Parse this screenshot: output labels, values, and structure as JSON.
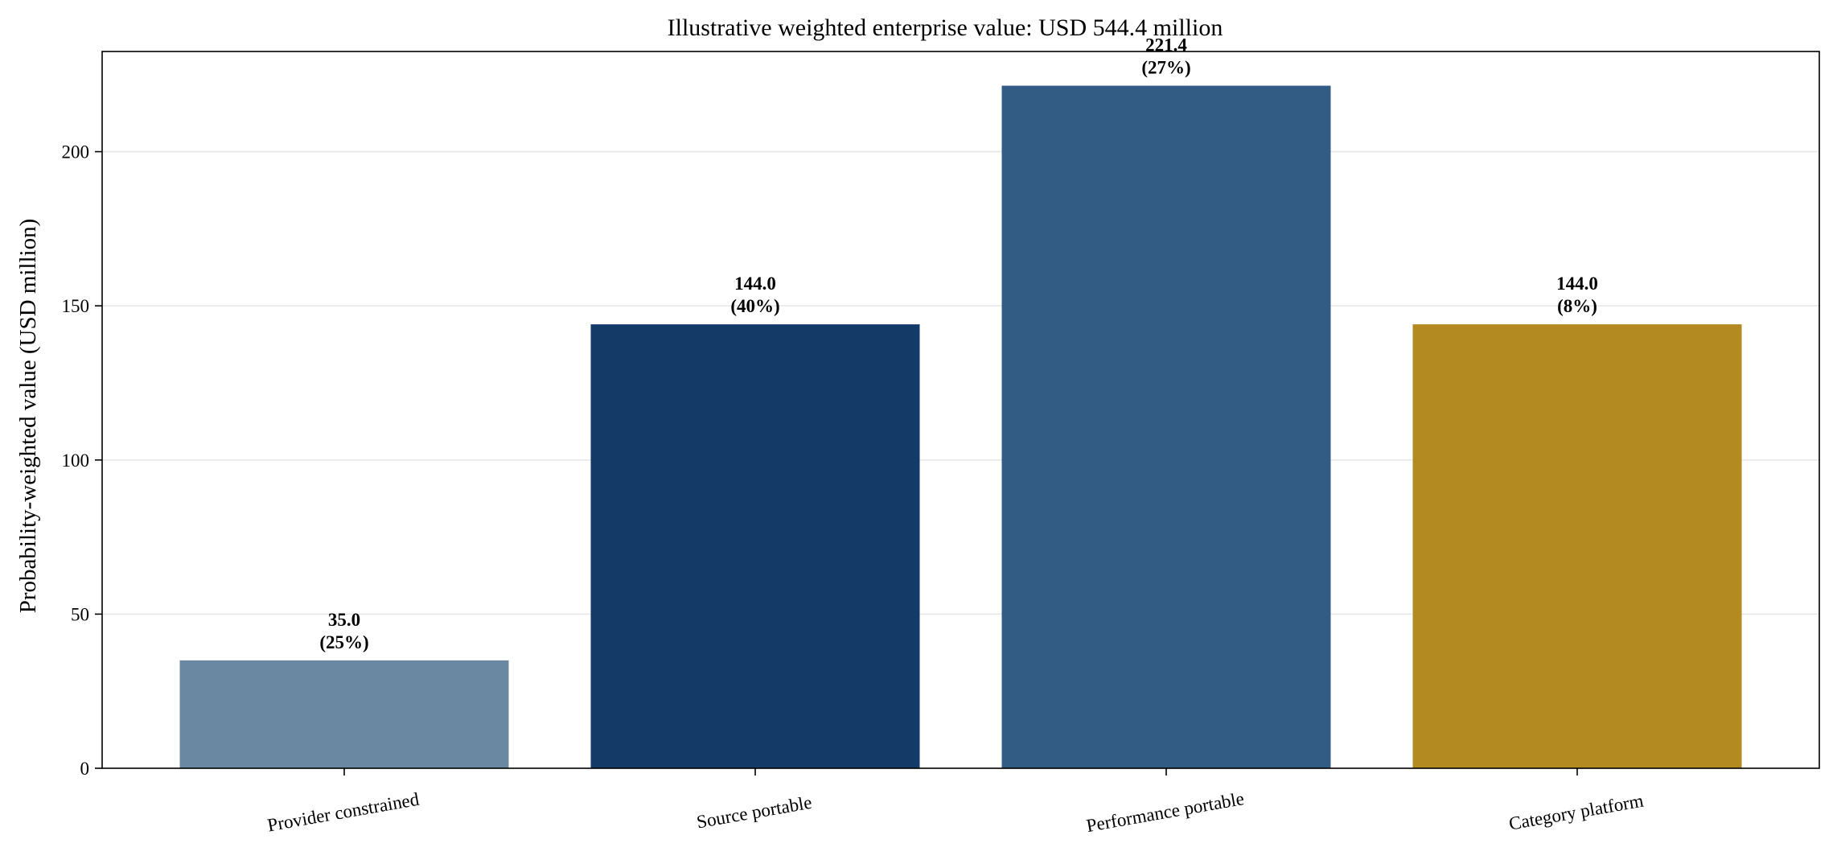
{
  "chart_data": {
    "type": "bar",
    "title": "Illustrative weighted enterprise value: USD 544.4 million",
    "xlabel": "",
    "ylabel": "Probability-weighted value (USD million)",
    "categories": [
      "Provider constrained",
      "Source portable",
      "Performance portable",
      "Category platform"
    ],
    "values": [
      35.0,
      144.0,
      221.4,
      144.0
    ],
    "value_labels": [
      "35.0",
      "144.0",
      "221.4",
      "144.0"
    ],
    "share_labels": [
      "(25%)",
      "(40%)",
      "(27%)",
      "(8%)"
    ],
    "colors": [
      "#6b88a3",
      "#143a68",
      "#325c84",
      "#b38a22"
    ],
    "ylim": [
      0,
      232.5
    ],
    "yticks": [
      0,
      50,
      100,
      150,
      200
    ],
    "grid": "horizontal",
    "legend": "none"
  }
}
